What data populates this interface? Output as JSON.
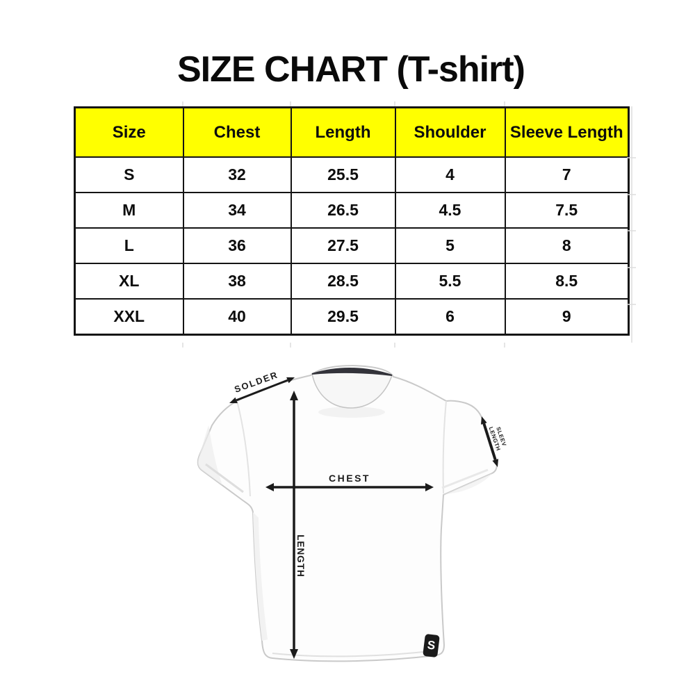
{
  "title": "SIZE CHART (T-shirt)",
  "table": {
    "header_bg": "#FFFF00",
    "headers": [
      "Size",
      "Chest",
      "Length",
      "Shoulder",
      "Sleeve Length"
    ],
    "rows": [
      [
        "S",
        "32",
        "25.5",
        "4",
        "7"
      ],
      [
        "M",
        "34",
        "26.5",
        "4.5",
        "7.5"
      ],
      [
        "L",
        "36",
        "27.5",
        "5",
        "8"
      ],
      [
        "XL",
        "38",
        "28.5",
        "5.5",
        "8.5"
      ],
      [
        "XXL",
        "40",
        "29.5",
        "6",
        "9"
      ]
    ]
  },
  "diagram": {
    "labels": {
      "shoulder": "SOLDER",
      "chest": "CHEST",
      "length": "LENGTH",
      "sleeve_line1": "SLEEV",
      "sleeve_line2": "LENGTH"
    },
    "logo_letter": "S"
  },
  "colors": {
    "header_yellow": "#FFFF00",
    "table_border": "#141414",
    "arrow_black": "#1b1b1b",
    "shirt_outline": "#c9c9c9",
    "collar_dark": "#33333a"
  },
  "chart_data": {
    "type": "table",
    "title": "SIZE CHART (T-shirt)",
    "columns": [
      "Size",
      "Chest",
      "Length",
      "Shoulder",
      "Sleeve Length"
    ],
    "rows": [
      [
        "S",
        32,
        25.5,
        4,
        7
      ],
      [
        "M",
        34,
        26.5,
        4.5,
        7.5
      ],
      [
        "L",
        36,
        27.5,
        5,
        8
      ],
      [
        "XL",
        38,
        28.5,
        5.5,
        8.5
      ],
      [
        "XXL",
        40,
        29.5,
        6,
        9
      ]
    ]
  }
}
